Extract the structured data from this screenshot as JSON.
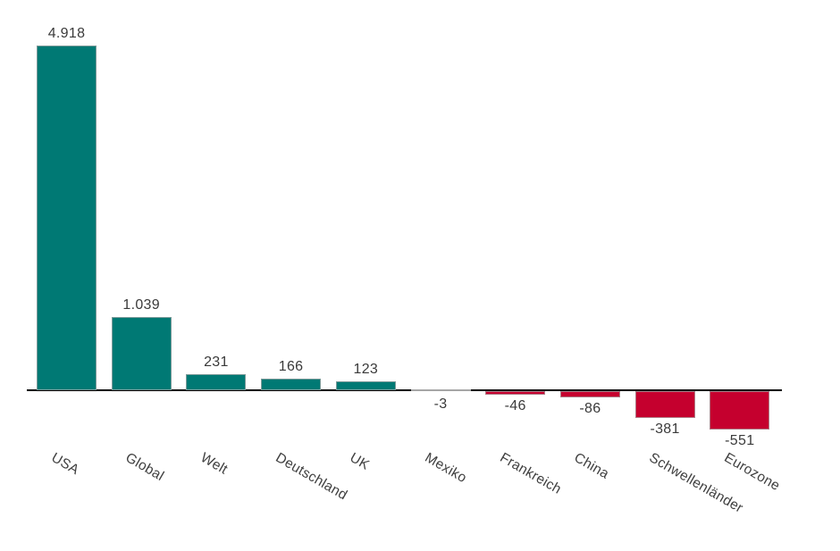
{
  "chart_data": {
    "type": "bar",
    "title": "",
    "xlabel": "",
    "ylabel": "",
    "categories": [
      "USA",
      "Global",
      "Welt",
      "Deutschland",
      "UK",
      "Mexiko",
      "Frankreich",
      "China",
      "Schwellenländer",
      "Eurozone"
    ],
    "values": [
      4918,
      1039,
      231,
      166,
      123,
      -3,
      -46,
      -86,
      -381,
      -551
    ],
    "value_labels": [
      "4.918",
      "1.039",
      "231",
      "166",
      "123",
      "-3",
      "-46",
      "-86",
      "-381",
      "-551"
    ],
    "ylim": [
      -600,
      5000
    ],
    "grid": false,
    "legend": false,
    "colors": {
      "positive_bar": "#007974",
      "negative_bar": "#c5002e",
      "near_zero_bar": "#a6a6a6",
      "axis": "#000000",
      "label_text": "#3a3a3a"
    },
    "category_label_rotation_deg": 30
  }
}
